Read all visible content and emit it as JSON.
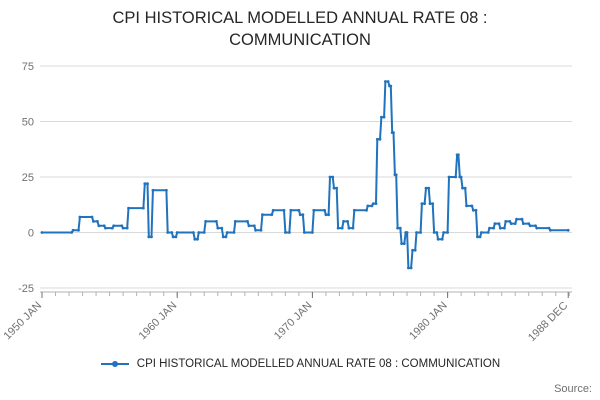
{
  "title": "CPI HISTORICAL MODELLED ANNUAL RATE 08 : COMMUNICATION",
  "legend": {
    "label": "CPI HISTORICAL MODELLED ANNUAL RATE 08 : COMMUNICATION"
  },
  "source_label": "Source:",
  "colors": {
    "line": "#2073bc",
    "grid": "#d9d9d9",
    "axis": "#b3b3b3",
    "tick_text": "#707070",
    "title_text": "#262626"
  },
  "chart_data": {
    "type": "line",
    "title": "CPI HISTORICAL MODELLED ANNUAL RATE 08 : COMMUNICATION",
    "xlabel": "",
    "ylabel": "",
    "x_range": [
      1950,
      1989.2
    ],
    "y_range": [
      -25,
      75
    ],
    "y_ticks": [
      75,
      50,
      25,
      0,
      -25
    ],
    "x_ticks": [
      {
        "label": "1950 JAN",
        "x": 1950.0
      },
      {
        "label": "1960 JAN",
        "x": 1960.0
      },
      {
        "label": "1970 JAN",
        "x": 1970.0
      },
      {
        "label": "1980 JAN",
        "x": 1980.0
      },
      {
        "label": "1988 DEC",
        "x": 1988.92
      }
    ],
    "minor_tick_start": 1950,
    "minor_tick_end": 1989,
    "minor_tick_step": 1,
    "grid": "horizontal",
    "legend_position": "bottom",
    "series": [
      {
        "name": "CPI HISTORICAL MODELLED ANNUAL RATE 08 : COMMUNICATION",
        "points": [
          [
            1950.0,
            0
          ],
          [
            1952.2,
            0
          ],
          [
            1952.3,
            1
          ],
          [
            1952.7,
            1
          ],
          [
            1952.8,
            7
          ],
          [
            1953.7,
            7
          ],
          [
            1953.8,
            5
          ],
          [
            1954.1,
            5
          ],
          [
            1954.2,
            3
          ],
          [
            1954.6,
            3
          ],
          [
            1954.7,
            2
          ],
          [
            1955.2,
            2
          ],
          [
            1955.3,
            3
          ],
          [
            1955.9,
            3
          ],
          [
            1956.0,
            2
          ],
          [
            1956.3,
            2
          ],
          [
            1956.4,
            11
          ],
          [
            1957.5,
            11
          ],
          [
            1957.6,
            22
          ],
          [
            1957.8,
            22
          ],
          [
            1957.9,
            -2
          ],
          [
            1958.1,
            -2
          ],
          [
            1958.2,
            19
          ],
          [
            1959.2,
            19
          ],
          [
            1959.3,
            0
          ],
          [
            1959.6,
            0
          ],
          [
            1959.7,
            -2
          ],
          [
            1959.9,
            -2
          ],
          [
            1960.0,
            0
          ],
          [
            1961.2,
            0
          ],
          [
            1961.3,
            -3
          ],
          [
            1961.5,
            -3
          ],
          [
            1961.6,
            0
          ],
          [
            1962.0,
            0
          ],
          [
            1962.1,
            5
          ],
          [
            1962.9,
            5
          ],
          [
            1963.0,
            2
          ],
          [
            1963.3,
            2
          ],
          [
            1963.4,
            -2
          ],
          [
            1963.6,
            -2
          ],
          [
            1963.7,
            0
          ],
          [
            1964.2,
            0
          ],
          [
            1964.3,
            5
          ],
          [
            1965.2,
            5
          ],
          [
            1965.3,
            3
          ],
          [
            1965.7,
            3
          ],
          [
            1965.8,
            1
          ],
          [
            1966.2,
            1
          ],
          [
            1966.3,
            8
          ],
          [
            1967.0,
            8
          ],
          [
            1967.1,
            10
          ],
          [
            1967.9,
            10
          ],
          [
            1968.0,
            0
          ],
          [
            1968.3,
            0
          ],
          [
            1968.4,
            10
          ],
          [
            1969.0,
            10
          ],
          [
            1969.1,
            8
          ],
          [
            1969.3,
            8
          ],
          [
            1969.4,
            0
          ],
          [
            1970.0,
            0
          ],
          [
            1970.1,
            10
          ],
          [
            1970.9,
            10
          ],
          [
            1971.0,
            8
          ],
          [
            1971.2,
            8
          ],
          [
            1971.3,
            25
          ],
          [
            1971.5,
            25
          ],
          [
            1971.6,
            20
          ],
          [
            1971.8,
            20
          ],
          [
            1971.9,
            2
          ],
          [
            1972.2,
            2
          ],
          [
            1972.3,
            5
          ],
          [
            1972.6,
            5
          ],
          [
            1972.7,
            2
          ],
          [
            1973.0,
            2
          ],
          [
            1973.1,
            10
          ],
          [
            1974.0,
            10
          ],
          [
            1974.1,
            12
          ],
          [
            1974.4,
            12
          ],
          [
            1974.5,
            13
          ],
          [
            1974.7,
            13
          ],
          [
            1974.8,
            42
          ],
          [
            1975.0,
            42
          ],
          [
            1975.1,
            52
          ],
          [
            1975.3,
            52
          ],
          [
            1975.4,
            68
          ],
          [
            1975.6,
            68
          ],
          [
            1975.7,
            66
          ],
          [
            1975.8,
            66
          ],
          [
            1975.9,
            45
          ],
          [
            1976.0,
            45
          ],
          [
            1976.1,
            26
          ],
          [
            1976.2,
            26
          ],
          [
            1976.3,
            2
          ],
          [
            1976.5,
            2
          ],
          [
            1976.6,
            -5
          ],
          [
            1976.8,
            -5
          ],
          [
            1976.9,
            0
          ],
          [
            1977.0,
            0
          ],
          [
            1977.1,
            -16
          ],
          [
            1977.3,
            -16
          ],
          [
            1977.4,
            -8
          ],
          [
            1977.6,
            -8
          ],
          [
            1977.7,
            0
          ],
          [
            1978.0,
            0
          ],
          [
            1978.1,
            13
          ],
          [
            1978.3,
            13
          ],
          [
            1978.4,
            20
          ],
          [
            1978.6,
            20
          ],
          [
            1978.7,
            13
          ],
          [
            1978.9,
            13
          ],
          [
            1979.0,
            0
          ],
          [
            1979.2,
            0
          ],
          [
            1979.3,
            -3
          ],
          [
            1979.6,
            -3
          ],
          [
            1979.7,
            0
          ],
          [
            1980.0,
            0
          ],
          [
            1980.1,
            25
          ],
          [
            1980.6,
            25
          ],
          [
            1980.7,
            35
          ],
          [
            1980.8,
            35
          ],
          [
            1980.9,
            25
          ],
          [
            1981.0,
            25
          ],
          [
            1981.1,
            20
          ],
          [
            1981.3,
            20
          ],
          [
            1981.4,
            12
          ],
          [
            1981.8,
            12
          ],
          [
            1981.9,
            10
          ],
          [
            1982.1,
            10
          ],
          [
            1982.2,
            -2
          ],
          [
            1982.4,
            -2
          ],
          [
            1982.5,
            0
          ],
          [
            1983.0,
            0
          ],
          [
            1983.1,
            2
          ],
          [
            1983.4,
            2
          ],
          [
            1983.5,
            4
          ],
          [
            1983.8,
            4
          ],
          [
            1983.9,
            2
          ],
          [
            1984.2,
            2
          ],
          [
            1984.3,
            5
          ],
          [
            1984.6,
            5
          ],
          [
            1984.7,
            4
          ],
          [
            1985.0,
            4
          ],
          [
            1985.1,
            6
          ],
          [
            1985.5,
            6
          ],
          [
            1985.6,
            4
          ],
          [
            1986.0,
            4
          ],
          [
            1986.1,
            3
          ],
          [
            1986.5,
            3
          ],
          [
            1986.6,
            2
          ],
          [
            1987.5,
            2
          ],
          [
            1987.6,
            1
          ],
          [
            1988.92,
            1
          ]
        ]
      }
    ]
  }
}
